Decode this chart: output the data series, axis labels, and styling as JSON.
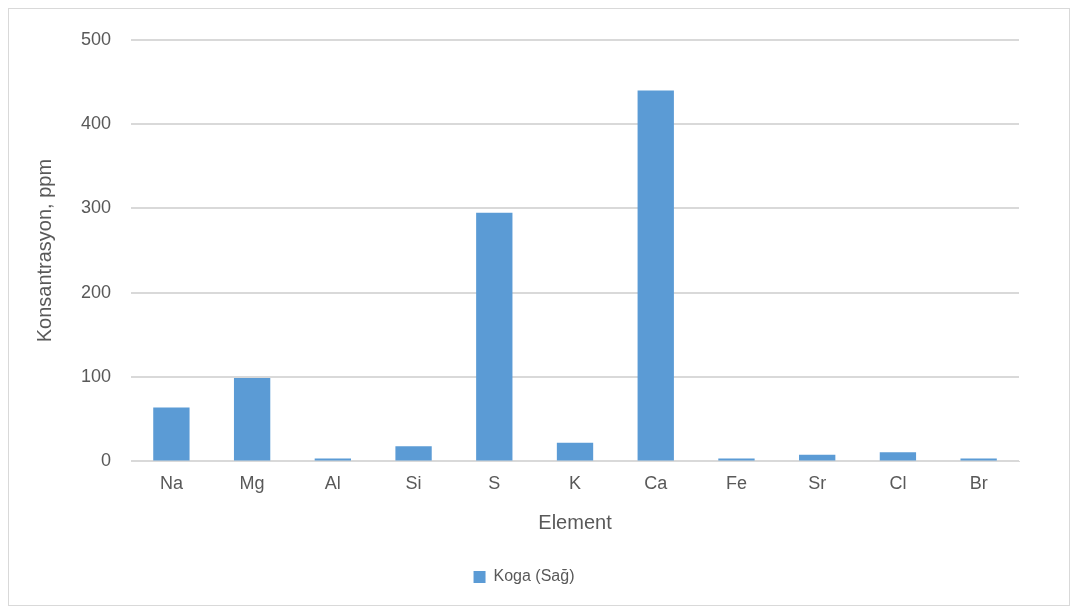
{
  "chart_data": {
    "type": "bar",
    "xlabel": "Element",
    "ylabel": "Konsantrasyon, ppm",
    "categories": [
      "Na",
      "Mg",
      "Al",
      "Si",
      "S",
      "K",
      "Ca",
      "Fe",
      "Sr",
      "Cl",
      "Br"
    ],
    "series": [
      {
        "name": "Koga (Sağ)",
        "color": "#5b9bd5",
        "values": [
          64,
          99,
          0,
          18,
          295,
          22,
          440,
          0,
          8,
          11,
          0
        ]
      }
    ],
    "ylim": [
      0,
      500
    ],
    "yticks": [
      0,
      100,
      200,
      300,
      400,
      500
    ],
    "grid": "y",
    "legend": "bottom"
  }
}
